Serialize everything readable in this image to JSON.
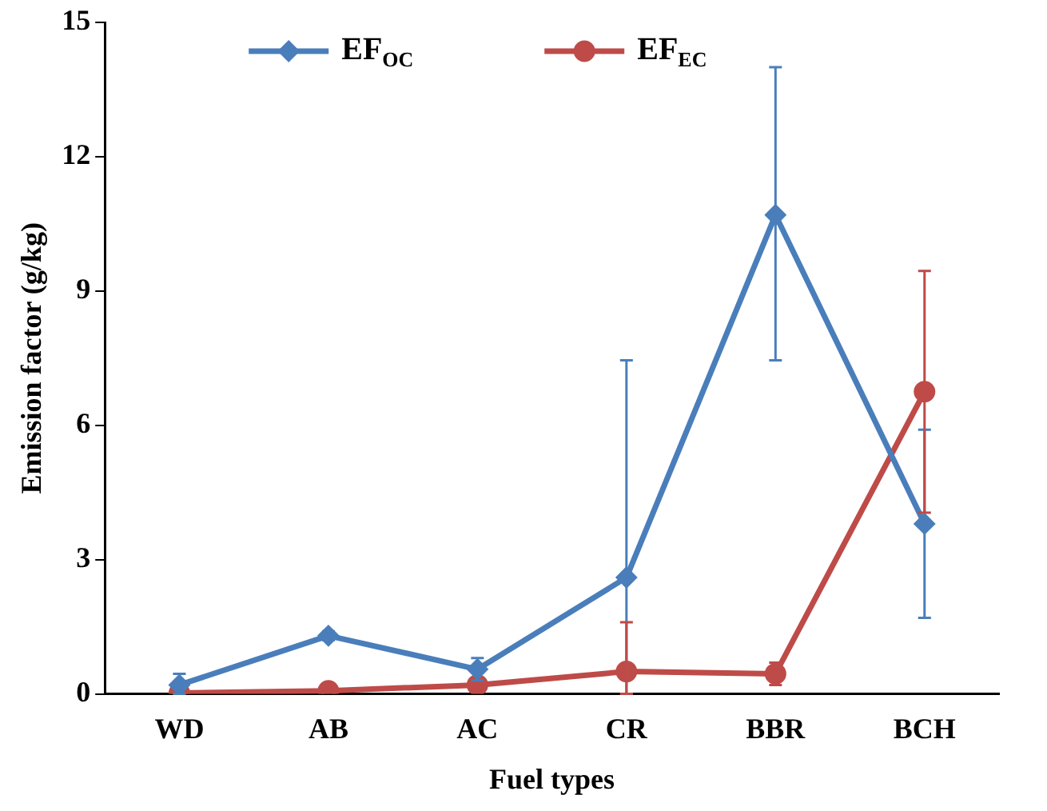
{
  "chart_data": {
    "type": "line",
    "xlabel": "Fuel types",
    "ylabel": "Emission factor (g/kg)",
    "categories": [
      "WD",
      "AB",
      "AC",
      "CR",
      "BBR",
      "BCH"
    ],
    "series": [
      {
        "name": "EF$_{OC}$",
        "color": "#4a7ebb",
        "marker": "diamond",
        "values": [
          0.2,
          1.3,
          0.55,
          2.6,
          10.7,
          3.8
        ],
        "errors": [
          [
            0,
            0.45
          ],
          [
            1.2,
            1.4
          ],
          [
            0.3,
            0.8
          ],
          [
            0,
            7.45
          ],
          [
            7.45,
            14.0
          ],
          [
            1.7,
            5.9
          ]
        ]
      },
      {
        "name": "EF$_{EC}$",
        "color": "#be4b48",
        "marker": "circle",
        "values": [
          0.02,
          0.07,
          0.2,
          0.5,
          0.45,
          6.75
        ],
        "errors": [
          null,
          null,
          null,
          [
            0,
            1.6
          ],
          [
            0.2,
            0.7
          ],
          [
            4.05,
            9.45
          ]
        ]
      }
    ],
    "ylim": [
      0,
      15
    ],
    "yticks": [
      0,
      3,
      6,
      9,
      12,
      15
    ],
    "grid": false,
    "legend": "top left"
  }
}
